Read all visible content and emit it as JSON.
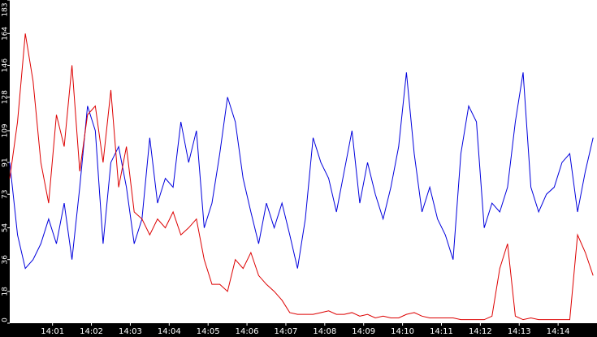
{
  "chart_data": {
    "type": "line",
    "x": [
      -0.1,
      0.1,
      0.3,
      0.5,
      0.7,
      0.9,
      1.1,
      1.3,
      1.5,
      1.7,
      1.9,
      2.1,
      2.3,
      2.5,
      2.7,
      2.9,
      3.1,
      3.3,
      3.5,
      3.7,
      3.9,
      4.1,
      4.3,
      4.5,
      4.7,
      4.9,
      5.1,
      5.3,
      5.5,
      5.7,
      5.9,
      6.1,
      6.3,
      6.5,
      6.7,
      6.9,
      7.1,
      7.3,
      7.5,
      7.7,
      7.9,
      8.1,
      8.3,
      8.5,
      8.7,
      8.9,
      9.1,
      9.3,
      9.5,
      9.7,
      9.9,
      10.1,
      10.3,
      10.5,
      10.7,
      10.9,
      11.1,
      11.3,
      11.5,
      11.7,
      11.9,
      12.1,
      12.3,
      12.5,
      12.7,
      12.9,
      13.1,
      13.3,
      13.5,
      13.7,
      13.9,
      14.1,
      14.3,
      14.5,
      14.7,
      14.9
    ],
    "series": [
      {
        "color": "#0000dd",
        "values": [
          91,
          50,
          31,
          36,
          45,
          59,
          45,
          68,
          36,
          77,
          123,
          109,
          45,
          91,
          100,
          77,
          45,
          59,
          105,
          68,
          82,
          77,
          114,
          91,
          109,
          54,
          68,
          96,
          128,
          114,
          82,
          63,
          45,
          68,
          54,
          68,
          50,
          31,
          59,
          105,
          91,
          82,
          63,
          86,
          109,
          68,
          91,
          73,
          59,
          77,
          100,
          142,
          96,
          63,
          77,
          59,
          50,
          36,
          96,
          123,
          114,
          54,
          68,
          63,
          77,
          114,
          142,
          77,
          63,
          73,
          77,
          91,
          96,
          63,
          86,
          105
        ]
      },
      {
        "color": "#dd0000",
        "values": [
          82,
          114,
          164,
          137,
          91,
          68,
          118,
          100,
          146,
          86,
          118,
          123,
          91,
          132,
          77,
          100,
          63,
          59,
          50,
          59,
          54,
          63,
          50,
          54,
          59,
          36,
          22,
          22,
          18,
          36,
          31,
          40,
          27,
          22,
          18,
          13,
          6,
          5,
          5,
          5,
          6,
          7,
          5,
          5,
          6,
          4,
          5,
          3,
          4,
          3,
          3,
          5,
          6,
          4,
          3,
          3,
          3,
          3,
          2,
          2,
          2,
          2,
          4,
          31,
          45,
          4,
          2,
          3,
          2,
          2,
          2,
          2,
          2,
          50,
          40,
          27
        ]
      }
    ],
    "xlim": [
      -0.1,
      15
    ],
    "xticks": [
      {
        "value": 1,
        "label": "14:01"
      },
      {
        "value": 2,
        "label": "14:02"
      },
      {
        "value": 3,
        "label": "14:03"
      },
      {
        "value": 4,
        "label": "14:04"
      },
      {
        "value": 5,
        "label": "14:05"
      },
      {
        "value": 6,
        "label": "14:06"
      },
      {
        "value": 7,
        "label": "14:07"
      },
      {
        "value": 8,
        "label": "14:08"
      },
      {
        "value": 9,
        "label": "14:09"
      },
      {
        "value": 10,
        "label": "14:10"
      },
      {
        "value": 11,
        "label": "14:11"
      },
      {
        "value": 12,
        "label": "14:12"
      },
      {
        "value": 13,
        "label": "14:13"
      },
      {
        "value": 14,
        "label": "14:14"
      }
    ],
    "ylim": [
      0,
      183
    ],
    "yticks": [
      0,
      18,
      36,
      54,
      73,
      91,
      109,
      128,
      146,
      164,
      183
    ]
  }
}
